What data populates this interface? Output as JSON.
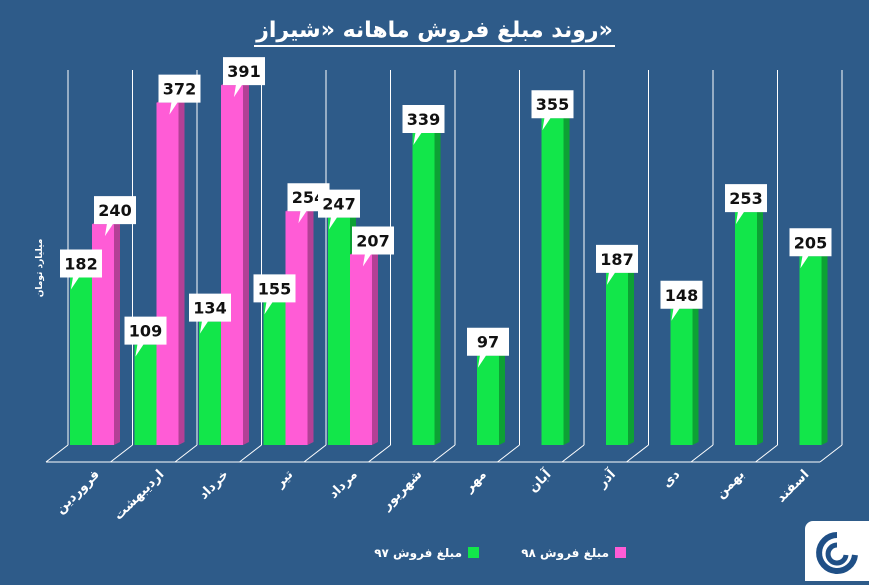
{
  "chart_data": {
    "type": "bar",
    "title": "روند مبلغ فروش ماهانه «شیراز»",
    "ylabel": "میلیارد تومان",
    "ylim": [
      0,
      440
    ],
    "categories": [
      "فروردین",
      "اردیبهشت",
      "خرداد",
      "تیر",
      "مرداد",
      "شهریور",
      "مهر",
      "آبان",
      "آذر",
      "دی",
      "بهمن",
      "اسفند"
    ],
    "series": [
      {
        "name": "مبلغ فروش ۹۷",
        "color": "#12e64a",
        "values": [
          182,
          109,
          134,
          155,
          247,
          339,
          97,
          355,
          187,
          148,
          253,
          205
        ]
      },
      {
        "name": "مبلغ فروش ۹۸",
        "color": "#ff5cd6",
        "values": [
          240,
          372,
          391,
          254,
          207,
          null,
          null,
          null,
          null,
          null,
          null,
          null
        ]
      }
    ],
    "grid": true,
    "legend_position": "bottom"
  },
  "logo": {
    "icon": "company-logo-icon"
  }
}
